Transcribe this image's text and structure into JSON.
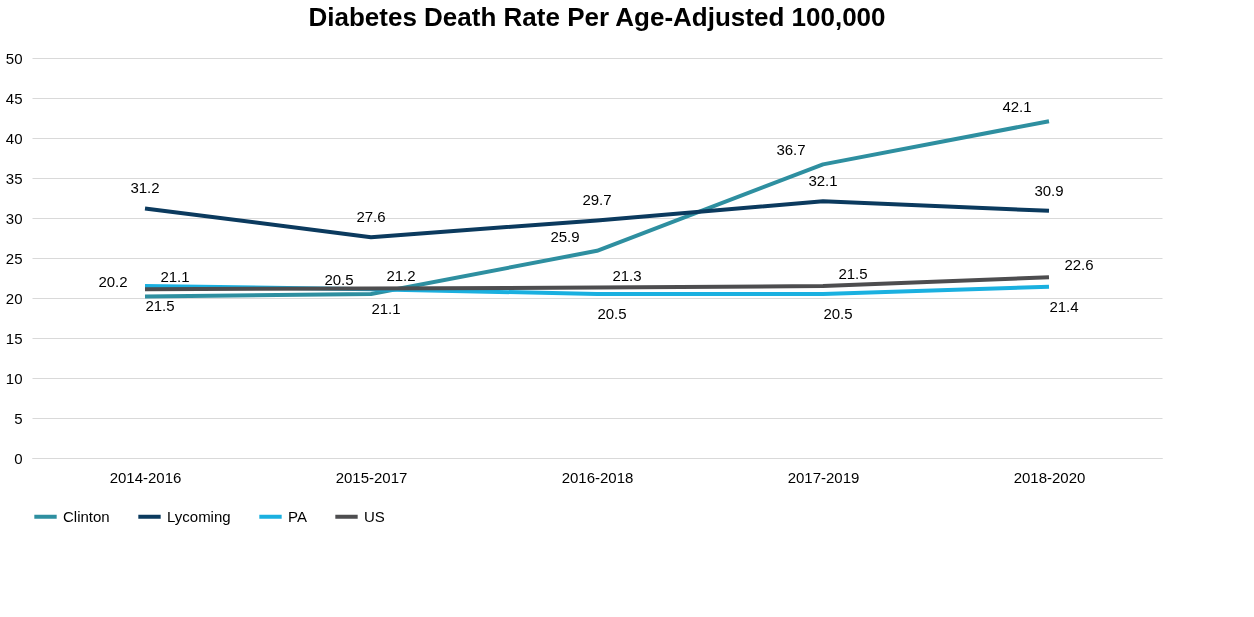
{
  "chart_data": {
    "type": "line",
    "title": "Diabetes Death Rate Per Age-Adjusted 100,000",
    "categories": [
      "2014-2016",
      "2015-2017",
      "2016-2018",
      "2017-2019",
      "2018-2020"
    ],
    "series": [
      {
        "name": "Clinton",
        "color": "#2e8fa0",
        "values": [
          20.2,
          20.5,
          25.9,
          36.7,
          42.1
        ]
      },
      {
        "name": "Lycoming",
        "color": "#0b3a5e",
        "values": [
          31.2,
          27.6,
          29.7,
          32.1,
          30.9
        ]
      },
      {
        "name": "PA",
        "color": "#1ab0e0",
        "values": [
          21.5,
          21.1,
          20.5,
          20.5,
          21.4
        ]
      },
      {
        "name": "US",
        "color": "#4d4d4f",
        "values": [
          21.1,
          21.2,
          21.3,
          21.5,
          22.6
        ]
      }
    ],
    "ylim": [
      0,
      50
    ],
    "yticks": [
      0,
      5,
      10,
      15,
      20,
      25,
      30,
      35,
      40,
      45,
      50
    ],
    "grid": "y",
    "legend": "bottom",
    "data_labels": true,
    "marker": "none",
    "line_style": "solid"
  }
}
